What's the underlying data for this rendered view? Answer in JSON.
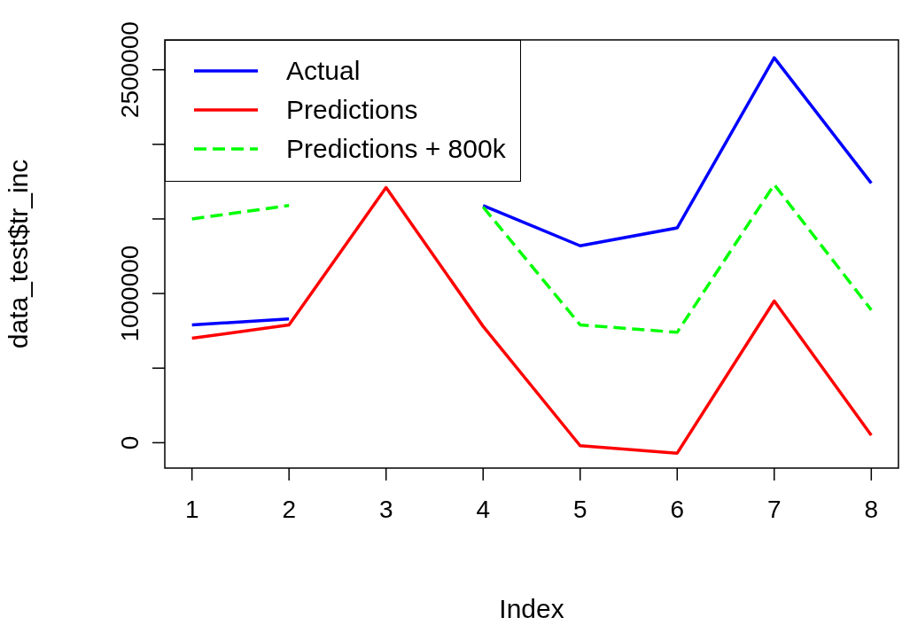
{
  "chart_data": {
    "type": "line",
    "xlabel": "Index",
    "ylabel": "data_test$tr_inc",
    "x": [
      1,
      2,
      3,
      4,
      5,
      6,
      7,
      8
    ],
    "series": [
      {
        "name": "Actual",
        "color": "#0000ff",
        "line_style": "solid",
        "values": [
          790000,
          830000,
          null,
          1590000,
          1320000,
          1440000,
          2580000,
          1740000
        ]
      },
      {
        "name": "Predictions",
        "color": "#ff0000",
        "line_style": "solid",
        "values": [
          700000,
          790000,
          1710000,
          780000,
          -20000,
          -70000,
          950000,
          50000
        ]
      },
      {
        "name": "Predictions + 800k",
        "color": "#00ff00",
        "line_style": "dashed",
        "values": [
          1500000,
          1590000,
          null,
          1580000,
          790000,
          740000,
          1730000,
          890000
        ]
      }
    ],
    "xlim": [
      0.72,
      8.28
    ],
    "xticks": [
      1,
      2,
      3,
      4,
      5,
      6,
      7,
      8
    ],
    "ylim": [
      -170000,
      2700000
    ],
    "yticks": [
      0,
      {
        "value": 500000,
        "label": null
      },
      1000000,
      {
        "value": 1500000,
        "label": null
      },
      {
        "value": 2000000,
        "label": null
      },
      2500000
    ],
    "legend": "top left",
    "grid": false,
    "marker": "none"
  }
}
